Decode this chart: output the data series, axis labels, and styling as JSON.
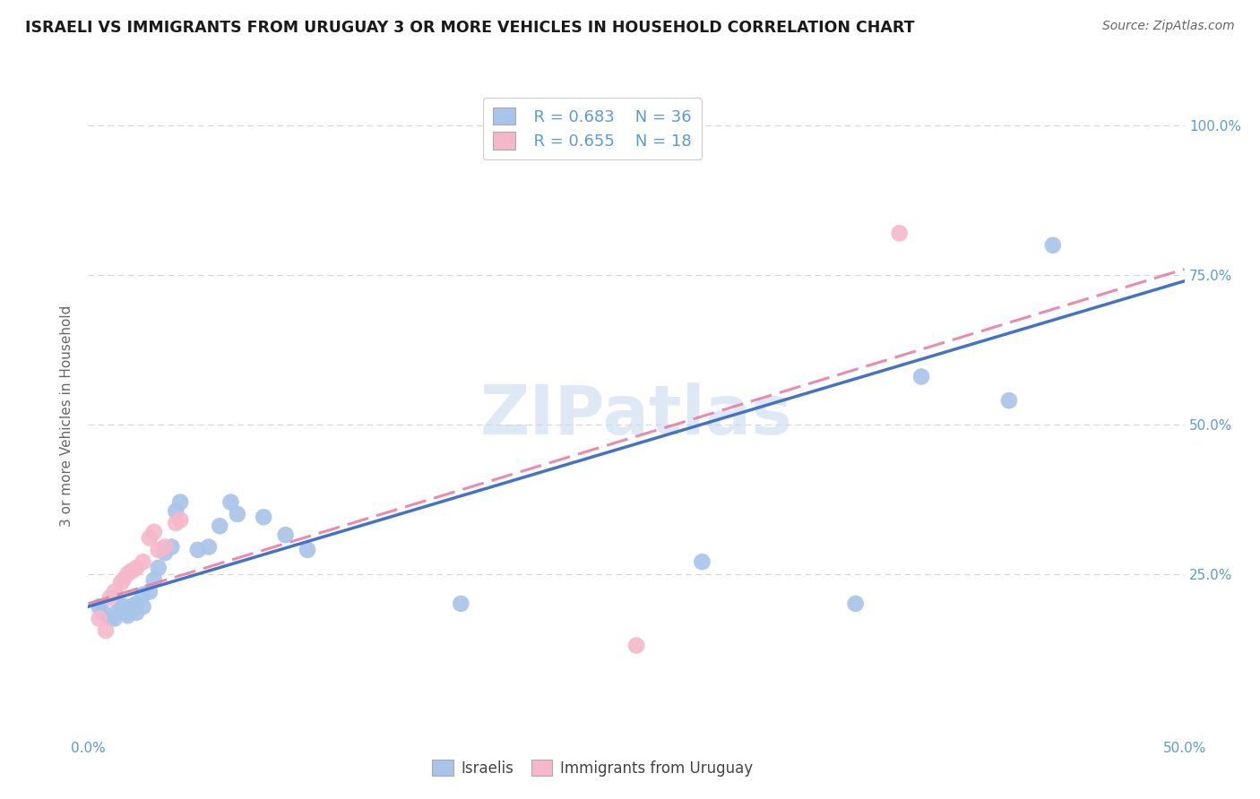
{
  "title": "ISRAELI VS IMMIGRANTS FROM URUGUAY 3 OR MORE VEHICLES IN HOUSEHOLD CORRELATION CHART",
  "source": "Source: ZipAtlas.com",
  "ylabel": "3 or more Vehicles in Household",
  "xlim": [
    0.0,
    0.5
  ],
  "ylim": [
    -0.02,
    1.05
  ],
  "xticks": [
    0.0,
    0.1,
    0.2,
    0.3,
    0.4,
    0.5
  ],
  "xtick_labels": [
    "0.0%",
    "",
    "",
    "",
    "",
    "50.0%"
  ],
  "yticks": [
    0.0,
    0.25,
    0.5,
    0.75,
    1.0
  ],
  "ytick_labels": [
    "",
    "25.0%",
    "50.0%",
    "75.0%",
    "100.0%"
  ],
  "legend_r_blue": "R = 0.683",
  "legend_n_blue": "N = 36",
  "legend_r_pink": "R = 0.655",
  "legend_n_pink": "N = 18",
  "legend_label_blue": "Israelis",
  "legend_label_pink": "Immigrants from Uruguay",
  "watermark": "ZIPatlas",
  "blue_color": "#a8c4e8",
  "pink_color": "#f5b8cb",
  "line_blue": "#4472c4",
  "line_pink": "#e87fa5",
  "title_color": "#1a1a1a",
  "axis_color": "#5b9bd5",
  "grid_color": "#cccccc",
  "blue_scatter": [
    [
      0.005,
      0.195
    ],
    [
      0.007,
      0.185
    ],
    [
      0.01,
      0.175
    ],
    [
      0.012,
      0.175
    ],
    [
      0.013,
      0.185
    ],
    [
      0.015,
      0.192
    ],
    [
      0.016,
      0.196
    ],
    [
      0.018,
      0.18
    ],
    [
      0.018,
      0.185
    ],
    [
      0.02,
      0.19
    ],
    [
      0.02,
      0.196
    ],
    [
      0.022,
      0.185
    ],
    [
      0.022,
      0.2
    ],
    [
      0.025,
      0.195
    ],
    [
      0.025,
      0.215
    ],
    [
      0.028,
      0.22
    ],
    [
      0.03,
      0.24
    ],
    [
      0.032,
      0.26
    ],
    [
      0.035,
      0.285
    ],
    [
      0.038,
      0.295
    ],
    [
      0.04,
      0.355
    ],
    [
      0.042,
      0.37
    ],
    [
      0.05,
      0.29
    ],
    [
      0.055,
      0.295
    ],
    [
      0.06,
      0.33
    ],
    [
      0.065,
      0.37
    ],
    [
      0.068,
      0.35
    ],
    [
      0.08,
      0.345
    ],
    [
      0.09,
      0.315
    ],
    [
      0.1,
      0.29
    ],
    [
      0.17,
      0.2
    ],
    [
      0.28,
      0.27
    ],
    [
      0.35,
      0.2
    ],
    [
      0.38,
      0.58
    ],
    [
      0.42,
      0.54
    ],
    [
      0.44,
      0.8
    ]
  ],
  "pink_scatter": [
    [
      0.005,
      0.175
    ],
    [
      0.008,
      0.155
    ],
    [
      0.01,
      0.21
    ],
    [
      0.012,
      0.22
    ],
    [
      0.015,
      0.235
    ],
    [
      0.016,
      0.24
    ],
    [
      0.018,
      0.25
    ],
    [
      0.02,
      0.255
    ],
    [
      0.022,
      0.26
    ],
    [
      0.025,
      0.27
    ],
    [
      0.028,
      0.31
    ],
    [
      0.03,
      0.32
    ],
    [
      0.032,
      0.29
    ],
    [
      0.035,
      0.295
    ],
    [
      0.04,
      0.335
    ],
    [
      0.042,
      0.34
    ],
    [
      0.25,
      0.13
    ],
    [
      0.37,
      0.82
    ]
  ],
  "blue_line": [
    0.0,
    0.5
  ],
  "blue_line_y": [
    0.195,
    0.74
  ],
  "pink_line": [
    0.0,
    0.5
  ],
  "pink_line_y": [
    0.2,
    0.76
  ]
}
